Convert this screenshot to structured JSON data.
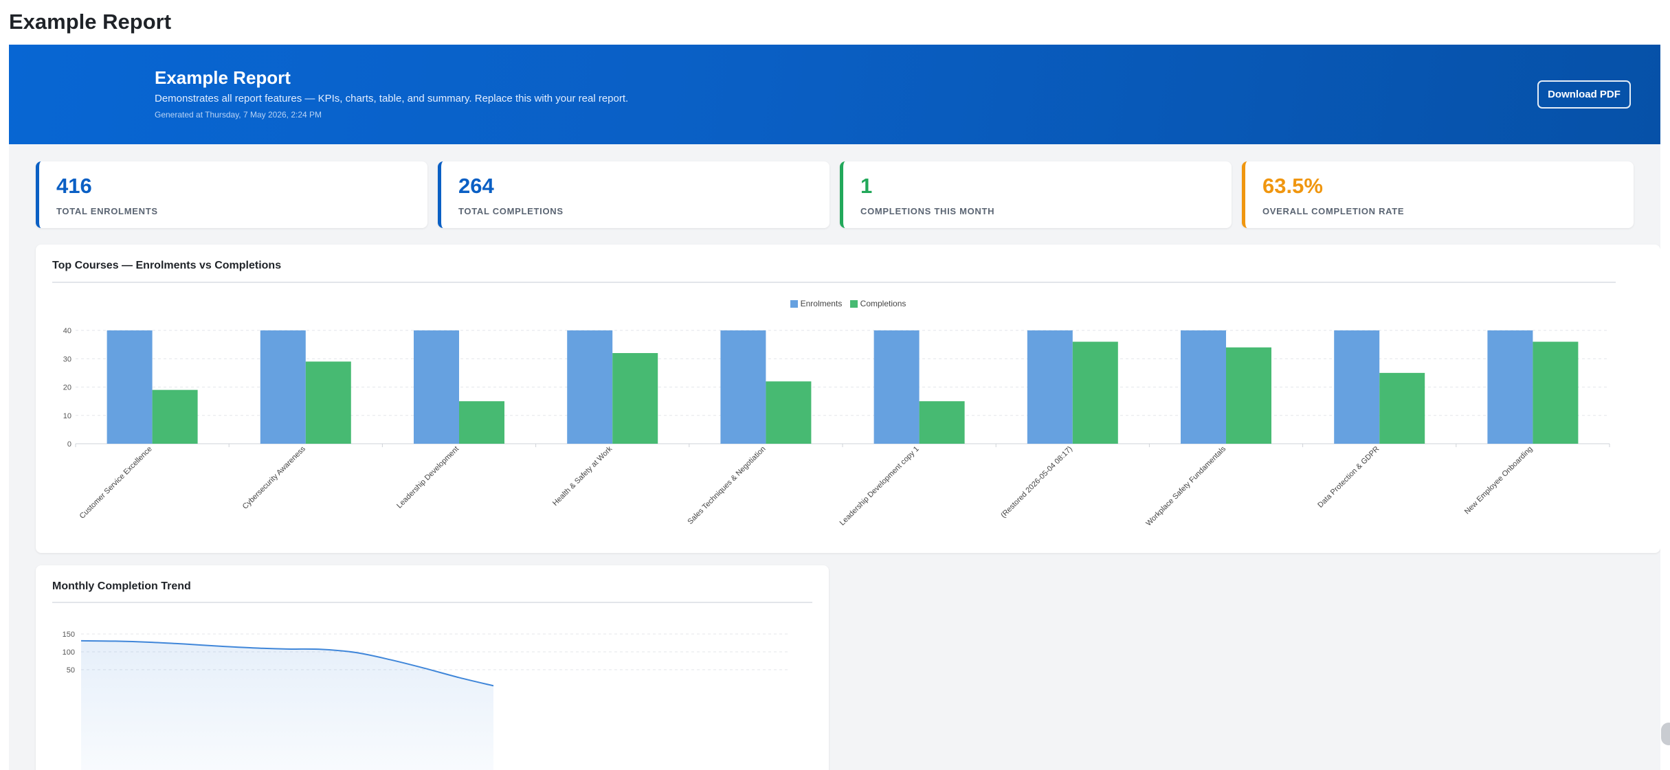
{
  "page": {
    "heading": "Example Report"
  },
  "banner": {
    "title": "Example Report",
    "description": "Demonstrates all report features — KPIs, charts, table, and summary. Replace this with your real report.",
    "generated": "Generated at Thursday, 7 May 2026, 2:24 PM",
    "download_label": "Download PDF"
  },
  "kpis": [
    {
      "value": "416",
      "label": "TOTAL ENROLMENTS",
      "color": "#0a5fc4"
    },
    {
      "value": "264",
      "label": "TOTAL COMPLETIONS",
      "color": "#0a5fc4"
    },
    {
      "value": "1",
      "label": "COMPLETIONS THIS MONTH",
      "color": "#22a85a"
    },
    {
      "value": "63.5%",
      "label": "OVERALL COMPLETION RATE",
      "color": "#f0960f"
    }
  ],
  "charts": {
    "top_courses": {
      "title": "Top Courses — Enrolments vs Completions"
    },
    "monthly_trend": {
      "title": "Monthly Completion Trend"
    }
  },
  "chart_data": [
    {
      "type": "bar",
      "title": "Top Courses — Enrolments vs Completions",
      "categories": [
        "Customer Service Excellence",
        "Cybersecurity Awareness",
        "Leadership Development",
        "Health & Safety at Work",
        "Sales Techniques & Negotiation",
        "Leadership Development copy 1",
        "(Restored 2026-05-04 08:17)",
        "Workplace Safety Fundamentals",
        "Data Protection & GDPR",
        "New Employee Onboarding"
      ],
      "series": [
        {
          "name": "Enrolments",
          "color": "#66a1e0",
          "values": [
            40,
            40,
            40,
            40,
            40,
            40,
            40,
            40,
            40,
            40
          ]
        },
        {
          "name": "Completions",
          "color": "#47ba72",
          "values": [
            19,
            29,
            15,
            32,
            22,
            15,
            36,
            34,
            25,
            36
          ]
        }
      ],
      "ylim": [
        0,
        40
      ],
      "yticks": [
        0,
        10,
        20,
        30,
        40
      ],
      "grid": true,
      "legend": "top-center"
    },
    {
      "type": "area",
      "title": "Monthly Completion Trend",
      "series": [
        {
          "color": "#3f86d9",
          "values": [
            131,
            130,
            127,
            122,
            116,
            111,
            108,
            107,
            98,
            78,
            54,
            28,
            5
          ]
        }
      ],
      "ylim": [
        0,
        150
      ],
      "yticks": [
        50,
        100,
        150
      ],
      "grid": true
    }
  ]
}
